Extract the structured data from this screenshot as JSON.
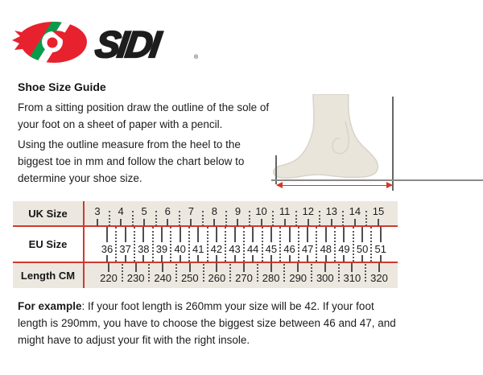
{
  "logo": {
    "brand": "SIDI",
    "registered": "®",
    "icon": "sidi-swirl-icon",
    "colors": {
      "red": "#e8212e",
      "green": "#089b4c",
      "white": "#ffffff",
      "black": "#1d1d1d"
    }
  },
  "guide": {
    "title": "Shoe Size Guide",
    "paragraph1_lines": [
      "From a sitting position draw the outline of the sole of",
      "your foot on a sheet of paper with a pencil."
    ],
    "paragraph2_lines": [
      "Using the outline measure from the heel to the",
      "biggest toe in mm and follow the chart below to",
      "determine your shoe size."
    ]
  },
  "foot_diagram": {
    "foot_icon": "foot-side-profile-icon",
    "arrow_color": "#d5382b"
  },
  "size_chart": {
    "band_color": "#ece8e0",
    "line_color": "#cf3a2d",
    "rows": [
      {
        "label": "UK Size",
        "values": [
          "3",
          "4",
          "5",
          "6",
          "7",
          "8",
          "9",
          "10",
          "11",
          "12",
          "13",
          "14",
          "15"
        ]
      },
      {
        "label": "EU Size",
        "values": [
          "36",
          "37",
          "38",
          "39",
          "40",
          "41",
          "42",
          "43",
          "44",
          "45",
          "46",
          "47",
          "48",
          "49",
          "50",
          "51"
        ]
      },
      {
        "label": "Length CM",
        "values": [
          "220",
          "230",
          "240",
          "250",
          "260",
          "270",
          "280",
          "290",
          "300",
          "310",
          "320"
        ]
      }
    ]
  },
  "example": {
    "bold_prefix": "For example",
    "text_lines": [
      ": If your foot length is 260mm your size will be 42. If your foot",
      "length is 290mm, you have to choose the biggest size between 46 and 47, and",
      "might have to adjust your fit with the right insole."
    ]
  }
}
